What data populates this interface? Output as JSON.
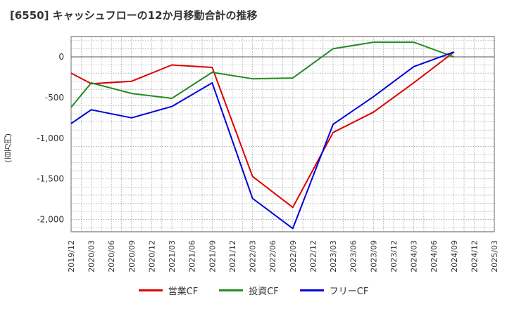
{
  "chart_data": {
    "type": "line",
    "title": "[6550]  キャッシュフローの12か月移動合計の推移",
    "xlabel": "",
    "ylabel": "(百万円)",
    "x_ticks": [
      "2019/12",
      "2020/03",
      "2020/06",
      "2020/09",
      "2020/12",
      "2021/03",
      "2021/06",
      "2021/09",
      "2021/12",
      "2022/03",
      "2022/06",
      "2022/09",
      "2022/12",
      "2023/03",
      "2023/06",
      "2023/09",
      "2023/12",
      "2024/03",
      "2024/06",
      "2024/09",
      "2024/12",
      "2025/03"
    ],
    "y_ticks": [
      0,
      -500,
      -1000,
      -1500,
      -2000
    ],
    "y_tick_labels": [
      "0",
      "-500",
      "-1,000",
      "-1,500",
      "-2,000"
    ],
    "ylim": [
      -2150,
      250
    ],
    "grid": true,
    "legend_position": "bottom",
    "series": [
      {
        "name": "営業CF",
        "color": "#dd0000",
        "x": [
          "2019/12",
          "2020/03",
          "2020/09",
          "2021/03",
          "2021/09",
          "2022/03",
          "2022/09",
          "2023/03",
          "2023/09",
          "2024/03",
          "2024/09"
        ],
        "values": [
          -200,
          -330,
          -300,
          -100,
          -130,
          -1470,
          -1850,
          -930,
          -680,
          -320,
          60
        ]
      },
      {
        "name": "投資CF",
        "color": "#228b22",
        "x": [
          "2019/12",
          "2020/03",
          "2020/09",
          "2021/03",
          "2021/09",
          "2022/03",
          "2022/09",
          "2023/03",
          "2023/09",
          "2024/03",
          "2024/09"
        ],
        "values": [
          -620,
          -320,
          -450,
          -510,
          -190,
          -270,
          -260,
          100,
          180,
          180,
          0
        ]
      },
      {
        "name": "フリーCF",
        "color": "#0000dd",
        "x": [
          "2019/12",
          "2020/03",
          "2020/09",
          "2021/03",
          "2021/09",
          "2022/03",
          "2022/09",
          "2023/03",
          "2023/09",
          "2024/03",
          "2024/09"
        ],
        "values": [
          -820,
          -650,
          -750,
          -610,
          -320,
          -1740,
          -2110,
          -830,
          -490,
          -120,
          60
        ]
      }
    ]
  }
}
